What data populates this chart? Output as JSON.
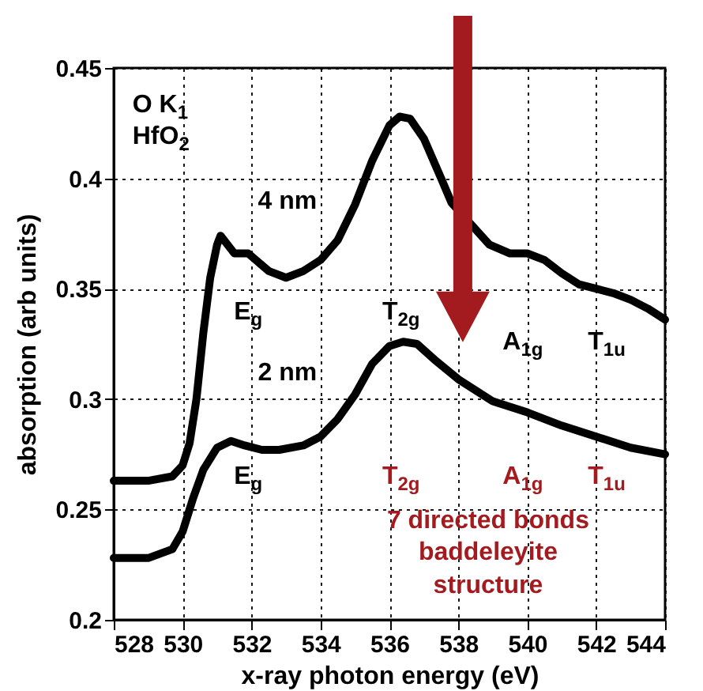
{
  "chart_data": {
    "type": "line",
    "xlabel": "x-ray photon energy (eV)",
    "ylabel": "absorption (arb units)",
    "xlim": [
      528,
      544
    ],
    "ylim": [
      0.2,
      0.45
    ],
    "xticks": [
      528,
      530,
      532,
      534,
      536,
      538,
      540,
      542,
      544
    ],
    "yticks": [
      0.2,
      0.25,
      0.3,
      0.35,
      0.4,
      0.45
    ],
    "grid": true,
    "line_style": "solid",
    "marker": "none",
    "series": [
      {
        "name": "4 nm",
        "color": "#000000",
        "x": [
          528,
          529,
          529.7,
          530,
          530.2,
          530.4,
          530.6,
          530.8,
          531,
          531.1,
          531.5,
          531.9,
          532.5,
          533,
          533.5,
          534,
          534.5,
          535,
          535.5,
          536,
          536.3,
          536.6,
          537,
          537.5,
          537.8,
          538.9,
          539.5,
          540,
          540.5,
          541,
          541.5,
          542,
          542.5,
          543,
          543.5,
          544
        ],
        "values": [
          0.263,
          0.263,
          0.265,
          0.27,
          0.28,
          0.3,
          0.33,
          0.355,
          0.37,
          0.374,
          0.366,
          0.366,
          0.358,
          0.355,
          0.358,
          0.363,
          0.372,
          0.388,
          0.408,
          0.424,
          0.428,
          0.427,
          0.418,
          0.4,
          0.389,
          0.37,
          0.366,
          0.366,
          0.363,
          0.357,
          0.352,
          0.35,
          0.348,
          0.345,
          0.341,
          0.336
        ]
      },
      {
        "name": "2 nm",
        "color": "#000000",
        "x": [
          528,
          529,
          529.7,
          530,
          530.3,
          530.6,
          531,
          531.4,
          531.8,
          532.3,
          532.8,
          533.5,
          534,
          534.5,
          535,
          535.5,
          536,
          536.4,
          536.8,
          537.3,
          538,
          539,
          540,
          541,
          542,
          543,
          544
        ],
        "values": [
          0.228,
          0.228,
          0.232,
          0.24,
          0.255,
          0.268,
          0.278,
          0.281,
          0.279,
          0.277,
          0.277,
          0.279,
          0.283,
          0.291,
          0.302,
          0.316,
          0.324,
          0.326,
          0.325,
          0.318,
          0.309,
          0.299,
          0.294,
          0.288,
          0.283,
          0.278,
          0.275
        ]
      }
    ],
    "annotations": [
      "O K$_{1}$",
      "HfO$_{2}$",
      "E$_{g}$",
      "T$_{2g}$",
      "A$_{1g}$",
      "T$_{1u}$",
      "E$_{g}$",
      "T$_{2g}$",
      "A$_{1g}$",
      "T$_{1u}$",
      "7 directed bonds",
      "baddeleyite",
      "structure"
    ]
  }
}
